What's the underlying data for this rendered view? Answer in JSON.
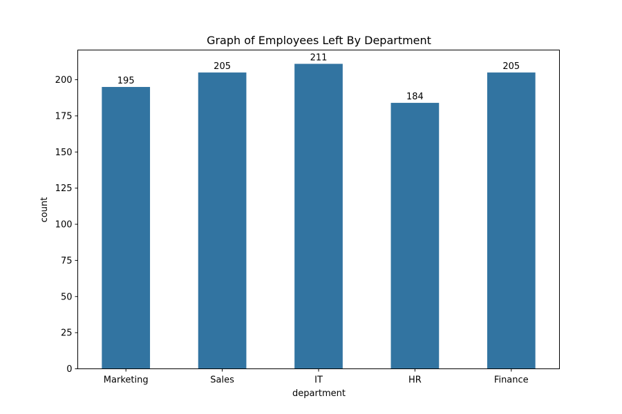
{
  "chart_data": {
    "type": "bar",
    "title": "Graph of Employees Left By Department",
    "xlabel": "department",
    "ylabel": "count",
    "categories": [
      "Marketing",
      "Sales",
      "IT",
      "HR",
      "Finance"
    ],
    "values": [
      195,
      205,
      211,
      184,
      205
    ],
    "data_labels": [
      "195",
      "205",
      "211",
      "184",
      "205"
    ],
    "ylim": [
      0,
      220.55
    ],
    "yticks": [
      0,
      25,
      50,
      75,
      100,
      125,
      150,
      175,
      200
    ],
    "grid": false,
    "legend": "none",
    "bar_color": "#3274a1"
  }
}
